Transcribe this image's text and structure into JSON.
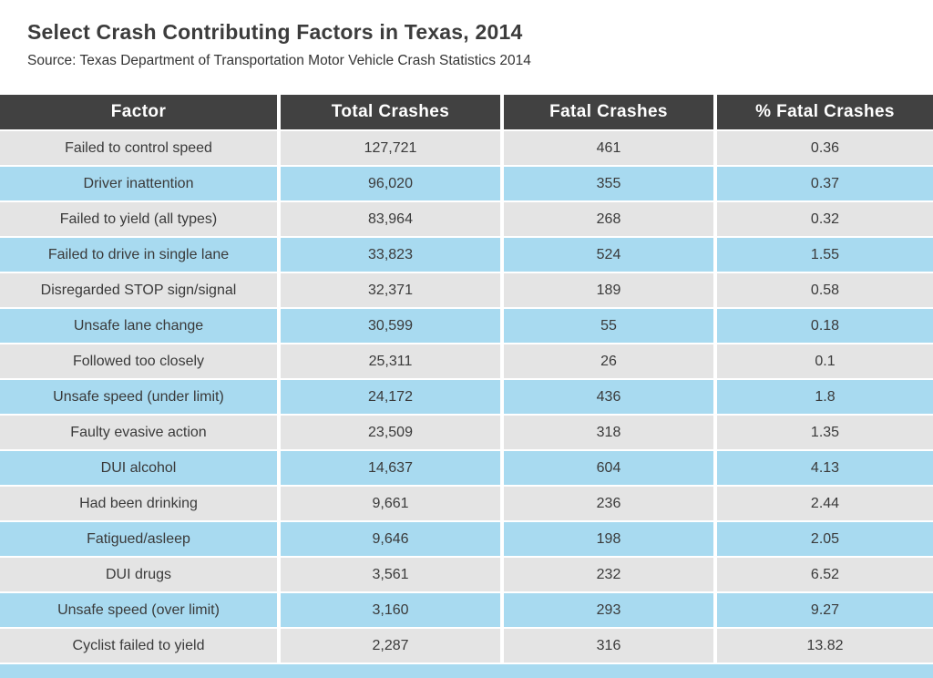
{
  "page": {
    "title": "Select Crash Contributing Factors in Texas, 2014",
    "source": "Source: Texas Department of Transportation Motor Vehicle Crash Statistics 2014"
  },
  "table": {
    "columns": [
      "Factor",
      "Total Crashes",
      "Fatal Crashes",
      "% Fatal Crashes"
    ],
    "rows": [
      {
        "factor": "Failed to control speed",
        "total_crashes": "127,721",
        "fatal_crashes": "461",
        "pct_fatal": "0.36"
      },
      {
        "factor": "Driver inattention",
        "total_crashes": "96,020",
        "fatal_crashes": "355",
        "pct_fatal": "0.37"
      },
      {
        "factor": "Failed to yield (all types)",
        "total_crashes": "83,964",
        "fatal_crashes": "268",
        "pct_fatal": "0.32"
      },
      {
        "factor": "Failed to drive in single lane",
        "total_crashes": "33,823",
        "fatal_crashes": "524",
        "pct_fatal": "1.55"
      },
      {
        "factor": "Disregarded STOP sign/signal",
        "total_crashes": "32,371",
        "fatal_crashes": "189",
        "pct_fatal": "0.58"
      },
      {
        "factor": "Unsafe lane change",
        "total_crashes": "30,599",
        "fatal_crashes": "55",
        "pct_fatal": "0.18"
      },
      {
        "factor": "Followed too closely",
        "total_crashes": "25,311",
        "fatal_crashes": "26",
        "pct_fatal": "0.1"
      },
      {
        "factor": "Unsafe speed (under limit)",
        "total_crashes": "24,172",
        "fatal_crashes": "436",
        "pct_fatal": "1.8"
      },
      {
        "factor": "Faulty evasive action",
        "total_crashes": "23,509",
        "fatal_crashes": "318",
        "pct_fatal": "1.35"
      },
      {
        "factor": "DUI alcohol",
        "total_crashes": "14,637",
        "fatal_crashes": "604",
        "pct_fatal": "4.13"
      },
      {
        "factor": "Had been drinking",
        "total_crashes": "9,661",
        "fatal_crashes": "236",
        "pct_fatal": "2.44"
      },
      {
        "factor": "Fatigued/asleep",
        "total_crashes": "9,646",
        "fatal_crashes": "198",
        "pct_fatal": "2.05"
      },
      {
        "factor": "DUI drugs",
        "total_crashes": "3,561",
        "fatal_crashes": "232",
        "pct_fatal": "6.52"
      },
      {
        "factor": "Unsafe speed (over limit)",
        "total_crashes": "3,160",
        "fatal_crashes": "293",
        "pct_fatal": "9.27"
      },
      {
        "factor": "Cyclist failed to yield",
        "total_crashes": "2,287",
        "fatal_crashes": "316",
        "pct_fatal": "13.82"
      }
    ]
  },
  "colors": {
    "header_bg": "#414141",
    "header_text": "#ffffff",
    "row_gray": "#e4e4e4",
    "row_blue": "#a8daf0",
    "body_text": "#3a3a3a"
  },
  "chart_data": {
    "type": "table",
    "title": "Select Crash Contributing Factors in Texas, 2014",
    "subtitle": "Source: Texas Department of Transportation Motor Vehicle Crash Statistics 2014",
    "columns": [
      "Factor",
      "Total Crashes",
      "Fatal Crashes",
      "% Fatal Crashes"
    ],
    "rows": [
      [
        "Failed to control speed",
        127721,
        461,
        0.36
      ],
      [
        "Driver inattention",
        96020,
        355,
        0.37
      ],
      [
        "Failed to yield (all types)",
        83964,
        268,
        0.32
      ],
      [
        "Failed to drive in single lane",
        33823,
        524,
        1.55
      ],
      [
        "Disregarded STOP sign/signal",
        32371,
        189,
        0.58
      ],
      [
        "Unsafe lane change",
        30599,
        55,
        0.18
      ],
      [
        "Followed too closely",
        25311,
        26,
        0.1
      ],
      [
        "Unsafe speed (under limit)",
        24172,
        436,
        1.8
      ],
      [
        "Faulty evasive action",
        23509,
        318,
        1.35
      ],
      [
        "DUI alcohol",
        14637,
        604,
        4.13
      ],
      [
        "Had been drinking",
        9661,
        236,
        2.44
      ],
      [
        "Fatigued/asleep",
        9646,
        198,
        2.05
      ],
      [
        "DUI drugs",
        3561,
        232,
        6.52
      ],
      [
        "Unsafe speed (over limit)",
        3160,
        293,
        9.27
      ],
      [
        "Cyclist failed to yield",
        2287,
        316,
        13.82
      ]
    ]
  }
}
